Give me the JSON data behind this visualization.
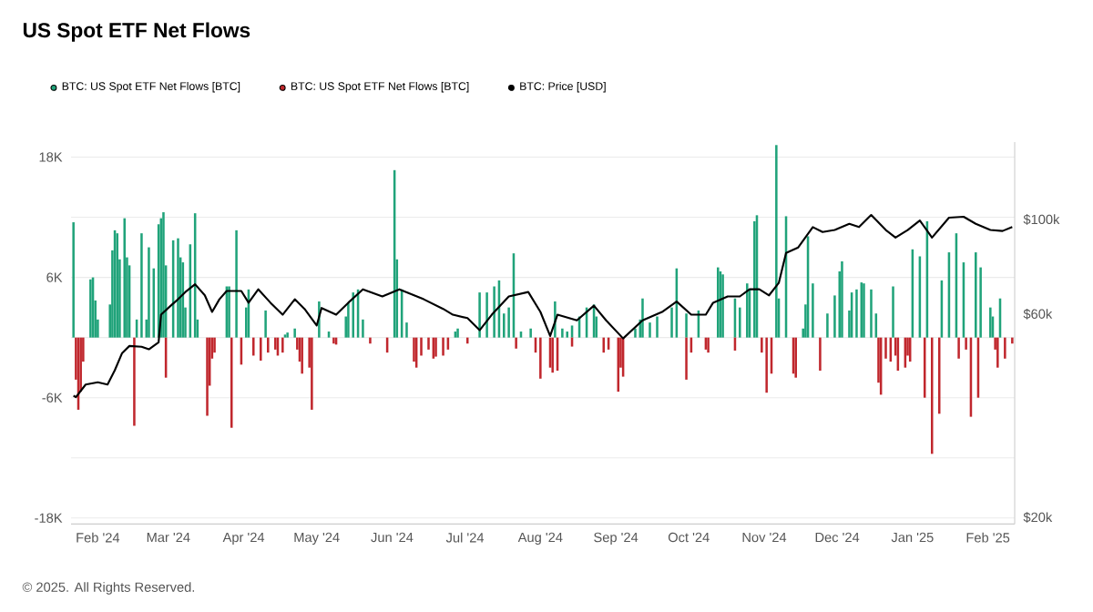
{
  "chart_data": {
    "type": "bar",
    "title": "US Spot ETF Net Flows",
    "xlim": [
      "2024-01-21",
      "2025-02-12"
    ],
    "xticks": [
      {
        "value": "2024-02-01",
        "label": "Feb '24"
      },
      {
        "value": "2024-03-01",
        "label": "Mar '24"
      },
      {
        "value": "2024-04-01",
        "label": "Apr '24"
      },
      {
        "value": "2024-05-01",
        "label": "May '24"
      },
      {
        "value": "2024-06-01",
        "label": "Jun '24"
      },
      {
        "value": "2024-07-01",
        "label": "Jul '24"
      },
      {
        "value": "2024-08-01",
        "label": "Aug '24"
      },
      {
        "value": "2024-09-01",
        "label": "Sep '24"
      },
      {
        "value": "2024-10-01",
        "label": "Oct '24"
      },
      {
        "value": "2024-11-01",
        "label": "Nov '24"
      },
      {
        "value": "2024-12-01",
        "label": "Dec '24"
      },
      {
        "value": "2025-01-01",
        "label": "Jan '25"
      },
      {
        "value": "2025-02-01",
        "label": "Feb '25"
      }
    ],
    "ylim": [
      -18600,
      19500
    ],
    "yticks": [
      {
        "value": -18000,
        "label": "-18K"
      },
      {
        "value": -12000,
        "label": null
      },
      {
        "value": -6000,
        "label": "-6K"
      },
      {
        "value": 0,
        "label": null
      },
      {
        "value": 6000,
        "label": "6K"
      },
      {
        "value": 12000,
        "label": null
      },
      {
        "value": 18000,
        "label": "18K"
      }
    ],
    "y2lim": [
      19300,
      152000
    ],
    "y2ticks": [
      {
        "value": 20000,
        "label": "$20k"
      },
      {
        "value": 60000,
        "label": "$60k"
      },
      {
        "value": 100000,
        "label": "$100k"
      }
    ],
    "log": "y2",
    "grid": "y",
    "legend": "top",
    "annotations": [
      "© 2025. All Rights Reserved."
    ],
    "series": [
      {
        "name": "BTC: US Spot ETF Net Flows [BTC]",
        "color": "#20a37a",
        "x": [
          "2024-01-22",
          "2024-01-29",
          "2024-01-30",
          "2024-01-31",
          "2024-02-01",
          "2024-02-06",
          "2024-02-07",
          "2024-02-08",
          "2024-02-09",
          "2024-02-10",
          "2024-02-12",
          "2024-02-13",
          "2024-02-14",
          "2024-02-17",
          "2024-02-19",
          "2024-02-21",
          "2024-02-22",
          "2024-02-24",
          "2024-02-26",
          "2024-02-27",
          "2024-02-28",
          "2024-02-29",
          "2024-03-03",
          "2024-03-05",
          "2024-03-06",
          "2024-03-07",
          "2024-03-08",
          "2024-03-10",
          "2024-03-12",
          "2024-03-13",
          "2024-03-25",
          "2024-03-26",
          "2024-03-29",
          "2024-04-02",
          "2024-04-03",
          "2024-04-10",
          "2024-04-18",
          "2024-04-19",
          "2024-04-22",
          "2024-05-02",
          "2024-05-06",
          "2024-05-13",
          "2024-05-14",
          "2024-05-16",
          "2024-05-18",
          "2024-05-20",
          "2024-06-02",
          "2024-06-03",
          "2024-06-05",
          "2024-06-07",
          "2024-06-27",
          "2024-06-28",
          "2024-07-07",
          "2024-07-10",
          "2024-07-13",
          "2024-07-15",
          "2024-07-17",
          "2024-07-19",
          "2024-07-21",
          "2024-07-24",
          "2024-07-28",
          "2024-08-07",
          "2024-08-10",
          "2024-08-12",
          "2024-08-14",
          "2024-08-17",
          "2024-08-20",
          "2024-08-23",
          "2024-08-24",
          "2024-09-09",
          "2024-09-11",
          "2024-09-12",
          "2024-09-15",
          "2024-09-18",
          "2024-09-24",
          "2024-09-26",
          "2024-09-30",
          "2024-10-05",
          "2024-10-13",
          "2024-10-14",
          "2024-10-15",
          "2024-10-20",
          "2024-10-22",
          "2024-10-25",
          "2024-10-26",
          "2024-10-28",
          "2024-10-29",
          "2024-11-06",
          "2024-11-07",
          "2024-11-10",
          "2024-11-17",
          "2024-11-18",
          "2024-11-19",
          "2024-11-21",
          "2024-11-27",
          "2024-11-30",
          "2024-12-02",
          "2024-12-03",
          "2024-12-06",
          "2024-12-07",
          "2024-12-09",
          "2024-12-11",
          "2024-12-12",
          "2024-12-15",
          "2024-12-17",
          "2024-12-24",
          "2025-01-01",
          "2025-01-04",
          "2025-01-07",
          "2025-01-13",
          "2025-01-16",
          "2025-01-19",
          "2025-01-22",
          "2025-01-27",
          "2025-01-29",
          "2025-02-02",
          "2025-02-03",
          "2025-02-06"
        ],
        "values": [
          11500,
          5800,
          6000,
          3700,
          1800,
          3300,
          8700,
          10700,
          10400,
          7800,
          11900,
          8000,
          7200,
          1800,
          10400,
          1800,
          9000,
          6900,
          11300,
          11900,
          12500,
          7200,
          9700,
          9900,
          8000,
          7500,
          3000,
          9300,
          12400,
          1800,
          5100,
          5100,
          10700,
          3000,
          4800,
          2700,
          300,
          500,
          900,
          3600,
          600,
          2100,
          3500,
          4500,
          4800,
          1800,
          16700,
          7800,
          4800,
          1500,
          600,
          900,
          4500,
          4500,
          5100,
          5700,
          2400,
          3000,
          8400,
          600,
          900,
          3600,
          900,
          600,
          1200,
          2100,
          3000,
          3300,
          2100,
          900,
          1800,
          3900,
          1500,
          2100,
          3000,
          6900,
          2400,
          2700,
          7000,
          6600,
          6300,
          3900,
          3000,
          5400,
          4800,
          11600,
          12200,
          19200,
          3900,
          12100,
          900,
          3300,
          10100,
          5400,
          2400,
          4200,
          6600,
          7600,
          2700,
          4500,
          4800,
          5500,
          5400,
          4800,
          2400,
          5100,
          8800,
          8100,
          11600,
          5700,
          8500,
          10400,
          7500,
          8500,
          7000,
          3000,
          2100,
          3900
        ]
      },
      {
        "name": "BTC: US Spot ETF Net Flows [BTC]",
        "color": "#c0272d",
        "x": [
          "2024-01-23",
          "2024-01-24",
          "2024-01-25",
          "2024-01-26",
          "2024-02-16",
          "2024-02-29",
          "2024-03-17",
          "2024-03-18",
          "2024-03-19",
          "2024-03-20",
          "2024-03-27",
          "2024-03-31",
          "2024-04-05",
          "2024-04-08",
          "2024-04-11",
          "2024-04-14",
          "2024-04-15",
          "2024-04-17",
          "2024-04-23",
          "2024-04-24",
          "2024-04-25",
          "2024-04-28",
          "2024-04-29",
          "2024-05-08",
          "2024-05-09",
          "2024-05-23",
          "2024-05-30",
          "2024-06-10",
          "2024-06-11",
          "2024-06-13",
          "2024-06-16",
          "2024-06-18",
          "2024-06-19",
          "2024-06-22",
          "2024-06-24",
          "2024-07-02",
          "2024-07-22",
          "2024-07-30",
          "2024-08-01",
          "2024-08-05",
          "2024-08-06",
          "2024-08-08",
          "2024-08-14",
          "2024-08-27",
          "2024-08-29",
          "2024-09-02",
          "2024-09-03",
          "2024-09-04",
          "2024-09-30",
          "2024-10-02",
          "2024-10-08",
          "2024-10-09",
          "2024-10-20",
          "2024-10-31",
          "2024-11-02",
          "2024-11-04",
          "2024-11-13",
          "2024-11-14",
          "2024-11-24",
          "2024-12-18",
          "2024-12-19",
          "2024-12-21",
          "2024-12-23",
          "2024-12-25",
          "2024-12-26",
          "2024-12-29",
          "2024-12-30",
          "2024-12-31",
          "2025-01-06",
          "2025-01-09",
          "2025-01-12",
          "2025-01-20",
          "2025-01-23",
          "2025-01-25",
          "2025-01-28",
          "2025-02-04",
          "2025-02-05",
          "2025-02-08",
          "2025-02-11"
        ],
        "values": [
          -4200,
          -7200,
          -5400,
          -2400,
          -8800,
          -4000,
          -7800,
          -4800,
          -2100,
          -1500,
          -9000,
          -2700,
          -1800,
          -2300,
          -1500,
          -1200,
          -1800,
          -1500,
          -1200,
          -2400,
          -3600,
          -3000,
          -7200,
          -600,
          -700,
          -600,
          -1500,
          -2400,
          -3000,
          -1800,
          -1200,
          -2100,
          -1900,
          -1800,
          -1200,
          -600,
          -1100,
          -1500,
          -4100,
          -3000,
          -3500,
          -3300,
          -900,
          -1500,
          -1200,
          -5400,
          -3000,
          -3900,
          -4200,
          -1500,
          -1200,
          -1500,
          -1300,
          -1500,
          -5500,
          -3600,
          -3600,
          -4000,
          -3300,
          -4500,
          -5700,
          -2100,
          -2400,
          -1800,
          -3300,
          -3000,
          -1800,
          -2400,
          -6000,
          -11600,
          -7600,
          -2100,
          -1200,
          -7900,
          -6000,
          -1200,
          -3000,
          -2100,
          -600
        ]
      },
      {
        "name": "BTC: Price [USD]",
        "type": "line",
        "axis": "y2",
        "color": "#000000",
        "x": [
          "2024-01-22",
          "2024-01-23",
          "2024-01-27",
          "2024-02-01",
          "2024-02-05",
          "2024-02-08",
          "2024-02-11",
          "2024-02-14",
          "2024-02-19",
          "2024-02-22",
          "2024-02-26",
          "2024-02-27",
          "2024-03-02",
          "2024-03-05",
          "2024-03-08",
          "2024-03-12",
          "2024-03-16",
          "2024-03-19",
          "2024-03-22",
          "2024-03-25",
          "2024-03-31",
          "2024-04-03",
          "2024-04-07",
          "2024-04-12",
          "2024-04-17",
          "2024-04-22",
          "2024-04-26",
          "2024-05-01",
          "2024-05-03",
          "2024-05-09",
          "2024-05-14",
          "2024-05-20",
          "2024-05-28",
          "2024-06-04",
          "2024-06-14",
          "2024-06-22",
          "2024-06-26",
          "2024-07-02",
          "2024-07-07",
          "2024-07-12",
          "2024-07-19",
          "2024-07-27",
          "2024-08-01",
          "2024-08-05",
          "2024-08-08",
          "2024-08-16",
          "2024-08-23",
          "2024-08-28",
          "2024-09-04",
          "2024-09-12",
          "2024-09-20",
          "2024-09-26",
          "2024-10-02",
          "2024-10-08",
          "2024-10-11",
          "2024-10-17",
          "2024-10-22",
          "2024-10-26",
          "2024-10-30",
          "2024-11-03",
          "2024-11-07",
          "2024-11-10",
          "2024-11-15",
          "2024-11-21",
          "2024-11-25",
          "2024-11-30",
          "2024-12-06",
          "2024-12-10",
          "2024-12-15",
          "2024-12-21",
          "2024-12-25",
          "2024-12-30",
          "2025-01-04",
          "2025-01-09",
          "2025-01-16",
          "2025-01-22",
          "2025-01-27",
          "2025-02-02",
          "2025-02-07",
          "2025-02-11"
        ],
        "values": [
          38600,
          38300,
          41000,
          41500,
          41000,
          44300,
          48600,
          50500,
          50300,
          49600,
          51500,
          59800,
          62800,
          65000,
          67600,
          70500,
          66400,
          60700,
          65000,
          68000,
          68000,
          63800,
          68600,
          63800,
          59800,
          65000,
          61700,
          56400,
          62000,
          59800,
          63800,
          68600,
          66000,
          68600,
          65000,
          61700,
          59800,
          58700,
          55000,
          59800,
          66000,
          67600,
          60700,
          53300,
          59800,
          58000,
          62800,
          58000,
          52600,
          58000,
          60700,
          64200,
          59800,
          59800,
          63800,
          66000,
          66000,
          68600,
          68600,
          66400,
          71000,
          83500,
          86000,
          96000,
          93500,
          94500,
          97700,
          96000,
          102500,
          94500,
          90700,
          94500,
          99500,
          90700,
          101000,
          101500,
          97700,
          94500,
          94000,
          96000
        ]
      }
    ]
  }
}
